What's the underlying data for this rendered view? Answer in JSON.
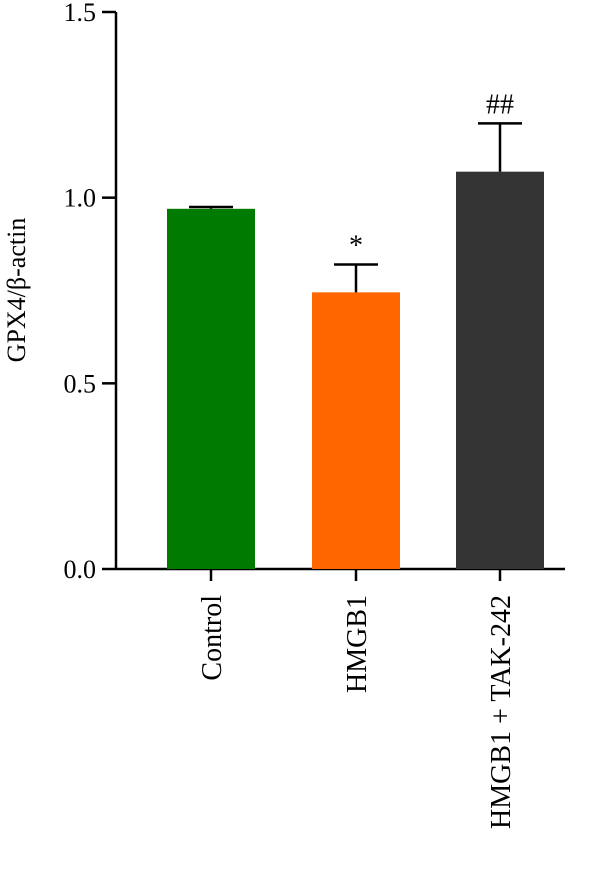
{
  "chart_data": {
    "type": "bar",
    "title": "",
    "xlabel": "",
    "ylabel": "GPX4/β-actin",
    "ylim": [
      0,
      1.5
    ],
    "yticks": [
      0.0,
      0.5,
      1.0,
      1.5
    ],
    "ytick_labels": [
      "0.0",
      "0.5",
      "1.0",
      "1.5"
    ],
    "grid": false,
    "legend": "none",
    "categories": [
      "Control",
      "HMGB1",
      "HMGB1 + TAK-242"
    ],
    "values": [
      0.97,
      0.745,
      1.07
    ],
    "error_upper": [
      0.975,
      0.82,
      1.2
    ],
    "significance": [
      "",
      "*",
      "##"
    ],
    "colors": [
      "#007a00",
      "#ff6600",
      "#333333"
    ]
  }
}
